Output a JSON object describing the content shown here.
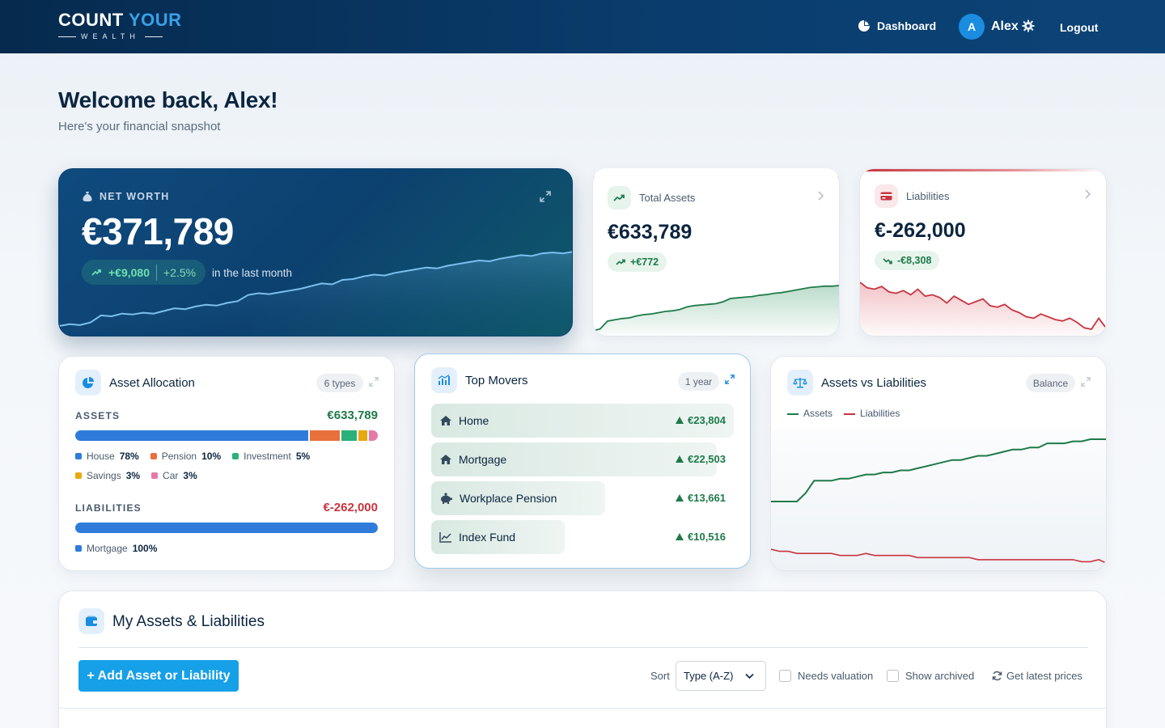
{
  "header": {
    "logo_line1_a": "CO",
    "logo_line1_b": "UNT ",
    "logo_line1_c": "YOUR",
    "logo_line2": "WEALTH",
    "nav_dashboard": "Dashboard",
    "user_initial": "A",
    "user_name": "Alex",
    "logout": "Logout"
  },
  "page": {
    "welcome": "Welcome back, Alex!",
    "subtitle": "Here's your financial snapshot"
  },
  "net_worth": {
    "label": "NET WORTH",
    "value": "€371,789",
    "change_abs": "+€9,080",
    "change_pct": "+2.5%",
    "period_note": "in the last month",
    "trend": [
      10,
      12,
      11,
      14,
      22,
      21,
      24,
      23,
      25,
      24,
      27,
      30,
      29,
      32,
      34,
      33,
      36,
      38,
      45,
      47,
      46,
      48,
      50,
      52,
      55,
      58,
      57,
      62,
      63,
      66,
      68,
      67,
      70,
      72,
      74,
      76,
      75,
      78,
      80,
      82,
      84,
      83,
      86,
      88,
      90,
      89,
      92,
      93,
      92,
      94
    ]
  },
  "total_assets": {
    "title": "Total Assets",
    "value": "€633,789",
    "change": "+€772",
    "color": "#1f7a4a",
    "trend": [
      5,
      8,
      20,
      22,
      24,
      25,
      28,
      30,
      31,
      33,
      35,
      36,
      38,
      42,
      44,
      45,
      46,
      47,
      50,
      55,
      56,
      57,
      58,
      60,
      61,
      63,
      64,
      66,
      68,
      70,
      72,
      73,
      74,
      74,
      75
    ]
  },
  "liabilities": {
    "title": "Liabilities",
    "value": "€-262,000",
    "change": "-€8,308",
    "color": "#c8343f",
    "trend": [
      80,
      72,
      70,
      74,
      66,
      64,
      68,
      62,
      70,
      60,
      62,
      58,
      50,
      60,
      54,
      48,
      52,
      56,
      46,
      44,
      48,
      40,
      36,
      30,
      28,
      34,
      30,
      26,
      24,
      28,
      22,
      14,
      12,
      28,
      14
    ]
  },
  "asset_allocation": {
    "title": "Asset Allocation",
    "badge": "6 types",
    "assets_label": "ASSETS",
    "assets_total": "€633,789",
    "asset_breakdown": [
      {
        "name": "House",
        "pct": "78%",
        "share": 78,
        "color": "#2f7bdc"
      },
      {
        "name": "Pension",
        "pct": "10%",
        "share": 10,
        "color": "#e8703a"
      },
      {
        "name": "Investment",
        "pct": "5%",
        "share": 5,
        "color": "#2ab07a"
      },
      {
        "name": "Savings",
        "pct": "3%",
        "share": 3,
        "color": "#e8a90e"
      },
      {
        "name": "Car",
        "pct": "3%",
        "share": 3,
        "color": "#e57aa8"
      }
    ],
    "liabilities_label": "LIABILITIES",
    "liabilities_total": "€-262,000",
    "liability_breakdown": [
      {
        "name": "Mortgage",
        "pct": "100%",
        "share": 100,
        "color": "#2f7bdc"
      }
    ]
  },
  "top_movers": {
    "title": "Top Movers",
    "period": "1 year",
    "items": [
      {
        "name": "Home",
        "change": "€23,804",
        "icon": "home-icon",
        "relative_magnitude": 1.0
      },
      {
        "name": "Mortgage",
        "change": "€22,503",
        "icon": "home-icon",
        "relative_magnitude": 0.945
      },
      {
        "name": "Workplace Pension",
        "change": "€13,661",
        "icon": "piggy-bank-icon",
        "relative_magnitude": 0.574
      },
      {
        "name": "Index Fund",
        "change": "€10,516",
        "icon": "line-chart-icon",
        "relative_magnitude": 0.442
      }
    ]
  },
  "assets_vs_liabilities": {
    "title": "Assets vs Liabilities",
    "mode": "Balance",
    "legend": [
      {
        "name": "Assets",
        "color": "#1f7a4a"
      },
      {
        "name": "Liabilities",
        "color": "#c8343f"
      }
    ],
    "assets_trend": [
      30,
      30,
      30,
      30,
      34,
      40,
      40,
      40,
      41,
      41,
      42,
      43,
      43,
      44,
      44,
      45,
      45,
      46,
      47,
      48,
      49,
      50,
      50,
      51,
      52,
      52,
      53,
      54,
      55,
      55,
      56,
      56,
      58,
      58,
      58,
      59,
      59,
      60,
      60,
      60
    ],
    "liabilities_trend": [
      7,
      6,
      6,
      5,
      5,
      5,
      5,
      5,
      4,
      4,
      4,
      5,
      4,
      4,
      4,
      4,
      4,
      3,
      3,
      3,
      3,
      3,
      3,
      3,
      2,
      2,
      2,
      2,
      2,
      2,
      2,
      2,
      2,
      2,
      2,
      2,
      1,
      1,
      2,
      0
    ]
  },
  "my_assets": {
    "title": "My Assets & Liabilities",
    "add_button": "+ Add Asset or Liability",
    "sort_label": "Sort",
    "sort_value": "Type (A-Z)",
    "needs_valuation": "Needs valuation",
    "show_archived": "Show archived",
    "get_prices": "Get latest prices"
  }
}
